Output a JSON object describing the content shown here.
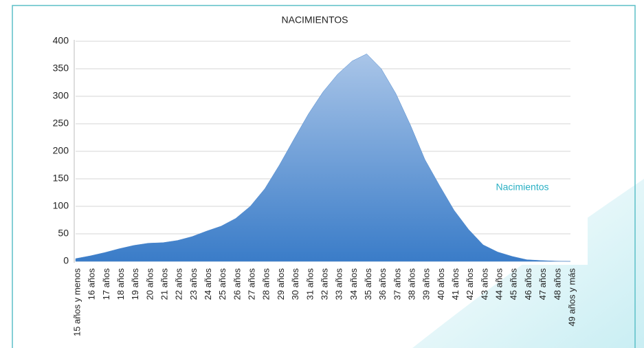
{
  "chart_data": {
    "type": "area",
    "title": "NACIMIENTOS",
    "categories": [
      "15 años y menos",
      "16 años",
      "17 años",
      "18 años",
      "19 años",
      "20 años",
      "21 años",
      "22 años",
      "23 años",
      "24 años",
      "25 años",
      "26 años",
      "27 años",
      "28 años",
      "29 años",
      "30 años",
      "31 años",
      "32 años",
      "33 años",
      "34 años",
      "35 años",
      "36 años",
      "37 años",
      "38 años",
      "39 años",
      "40 años",
      "41 años",
      "42 años",
      "43 años",
      "44 años",
      "45 años",
      "46 años",
      "47 años",
      "48 años",
      "49 años y más"
    ],
    "series": [
      {
        "name": "Nacimientos",
        "color": "#4a86cc",
        "values": [
          5,
          10,
          16,
          23,
          29,
          33,
          34,
          38,
          45,
          55,
          64,
          78,
          100,
          132,
          175,
          222,
          268,
          308,
          340,
          364,
          377,
          350,
          305,
          248,
          185,
          138,
          93,
          58,
          30,
          17,
          9,
          3,
          1.5,
          0.5,
          0
        ]
      }
    ],
    "ylim": [
      0,
      400
    ],
    "yticks": [
      0,
      50,
      100,
      150,
      200,
      250,
      300,
      350,
      400
    ],
    "grid": true,
    "legend": "right"
  }
}
